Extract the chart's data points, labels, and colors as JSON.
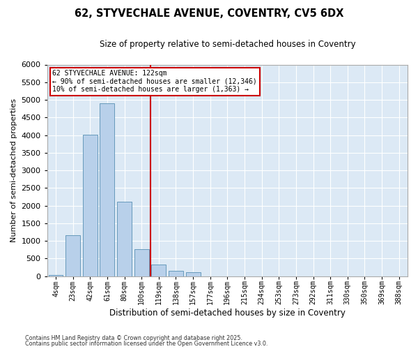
{
  "title_line1": "62, STYVECHALE AVENUE, COVENTRY, CV5 6DX",
  "title_line2": "Size of property relative to semi-detached houses in Coventry",
  "xlabel": "Distribution of semi-detached houses by size in Coventry",
  "ylabel": "Number of semi-detached properties",
  "categories": [
    "4sqm",
    "23sqm",
    "42sqm",
    "61sqm",
    "80sqm",
    "100sqm",
    "119sqm",
    "138sqm",
    "157sqm",
    "177sqm",
    "196sqm",
    "215sqm",
    "234sqm",
    "253sqm",
    "273sqm",
    "292sqm",
    "311sqm",
    "330sqm",
    "350sqm",
    "369sqm",
    "388sqm"
  ],
  "values": [
    30,
    1170,
    4020,
    4900,
    2120,
    760,
    330,
    160,
    120,
    0,
    0,
    0,
    0,
    0,
    0,
    0,
    0,
    0,
    0,
    0,
    0
  ],
  "bar_color": "#b8d0ea",
  "bar_edge_color": "#6699bb",
  "vline_x": 5.5,
  "vline_color": "#cc0000",
  "annotation_text": "62 STYVECHALE AVENUE: 122sqm\n← 90% of semi-detached houses are smaller (12,346)\n10% of semi-detached houses are larger (1,363) →",
  "annotation_box_color": "#cc0000",
  "ylim": [
    0,
    6000
  ],
  "yticks": [
    0,
    500,
    1000,
    1500,
    2000,
    2500,
    3000,
    3500,
    4000,
    4500,
    5000,
    5500,
    6000
  ],
  "footer_line1": "Contains HM Land Registry data © Crown copyright and database right 2025.",
  "footer_line2": "Contains public sector information licensed under the Open Government Licence v3.0.",
  "plot_background": "#dce9f5",
  "fig_background": "#ffffff"
}
